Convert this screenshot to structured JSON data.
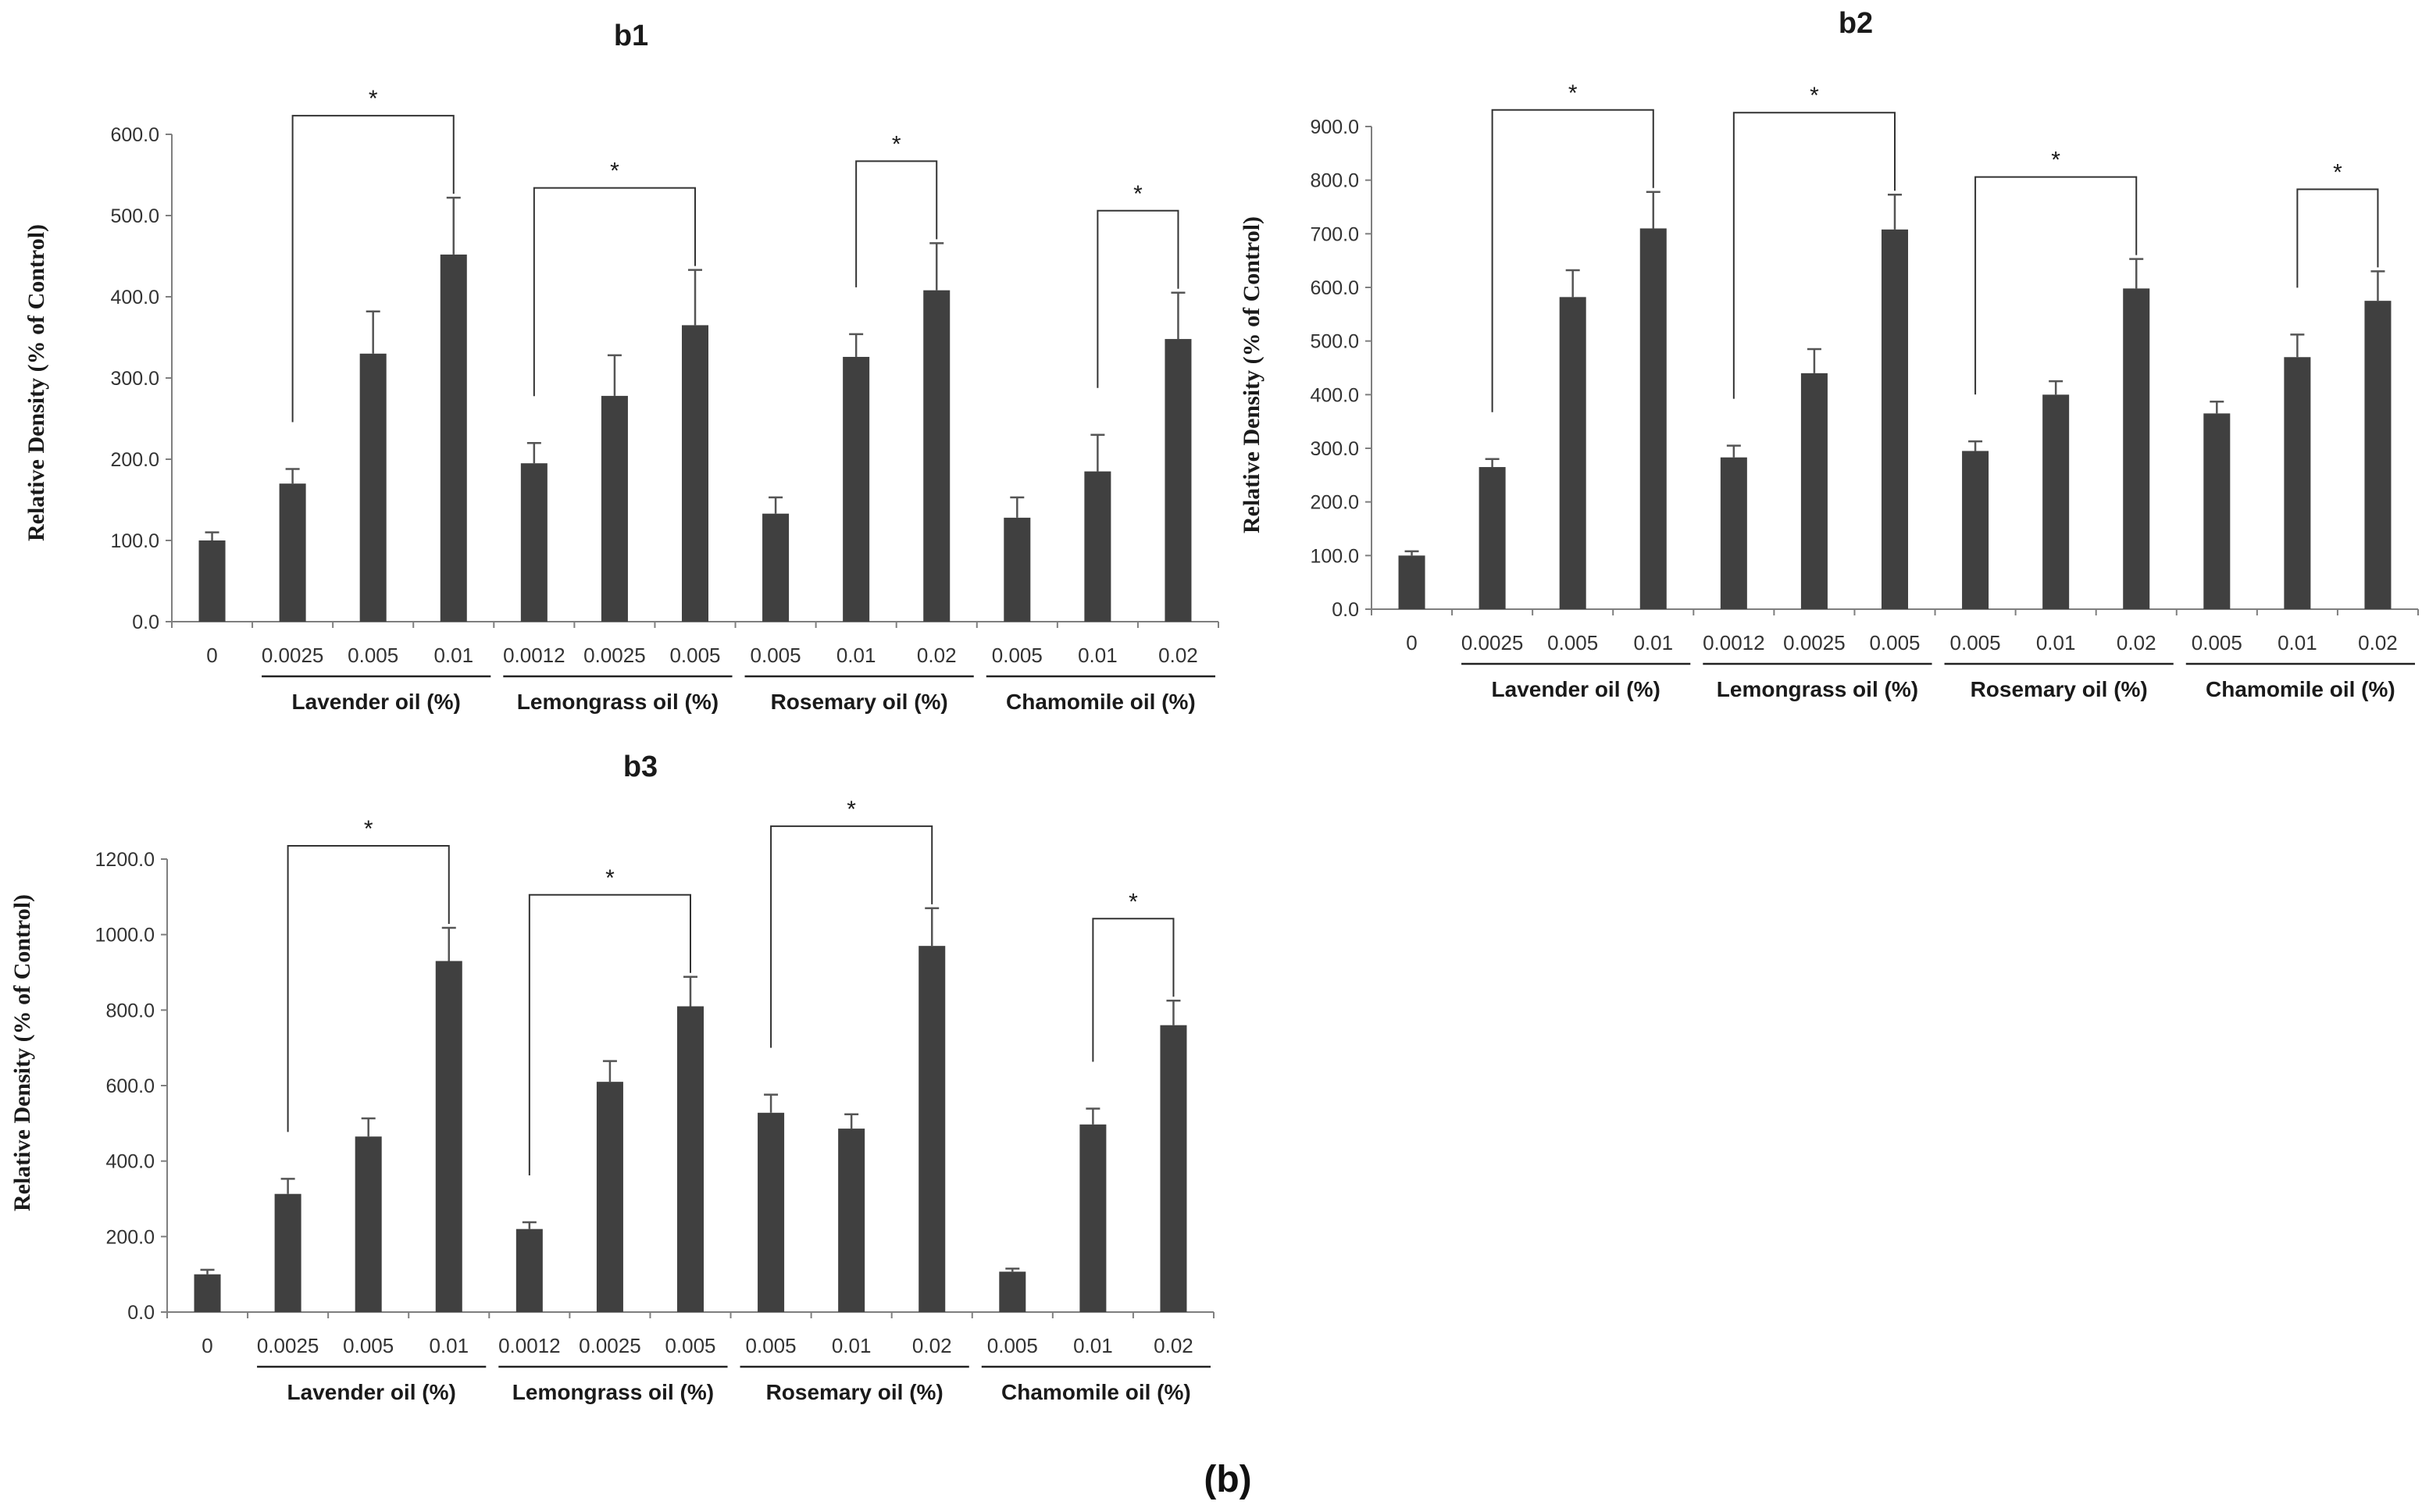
{
  "figure_label": "(b)",
  "chart_data": [
    {
      "id": "b1",
      "type": "bar",
      "title": "b1",
      "ylabel": "Relative Density (% of Control)",
      "xlabel": "",
      "ylim": [
        0,
        600
      ],
      "yticks": [
        "0.0",
        "100.0",
        "200.0",
        "300.0",
        "400.0",
        "500.0",
        "600.0"
      ],
      "categories": [
        "0",
        "0.0025",
        "0.005",
        "0.01",
        "0.0012",
        "0.0025",
        "0.005",
        "0.005",
        "0.01",
        "0.02",
        "0.005",
        "0.01",
        "0.02"
      ],
      "values": [
        100,
        170,
        330,
        452,
        195,
        278,
        365,
        133,
        326,
        408,
        128,
        185,
        348
      ],
      "errors": [
        10,
        18,
        52,
        70,
        25,
        50,
        68,
        20,
        28,
        58,
        25,
        45,
        57
      ],
      "groups": [
        {
          "label": "Lavender oil (%)",
          "from": 1,
          "to": 3
        },
        {
          "label": "Lemongrass oil (%)",
          "from": 4,
          "to": 6
        },
        {
          "label": "Rosemary oil (%)",
          "from": 7,
          "to": 9
        },
        {
          "label": "Chamomile oil (%)",
          "from": 10,
          "to": 12
        }
      ],
      "significance": [
        {
          "from": 1,
          "to": 3,
          "label": "*"
        },
        {
          "from": 4,
          "to": 6,
          "label": "*"
        },
        {
          "from": 8,
          "to": 9,
          "label": "*"
        },
        {
          "from": 11,
          "to": 12,
          "label": "*"
        }
      ]
    },
    {
      "id": "b2",
      "type": "bar",
      "title": "b2",
      "ylabel": "Relative Density (% of Control)",
      "xlabel": "",
      "ylim": [
        0,
        900
      ],
      "yticks": [
        "0.0",
        "100.0",
        "200.0",
        "300.0",
        "400.0",
        "500.0",
        "600.0",
        "700.0",
        "800.0",
        "900.0"
      ],
      "categories": [
        "0",
        "0.0025",
        "0.005",
        "0.01",
        "0.0012",
        "0.0025",
        "0.005",
        "0.005",
        "0.01",
        "0.02",
        "0.005",
        "0.01",
        "0.02"
      ],
      "values": [
        100,
        265,
        582,
        710,
        283,
        440,
        708,
        295,
        400,
        598,
        365,
        470,
        575
      ],
      "errors": [
        8,
        15,
        50,
        68,
        22,
        45,
        65,
        18,
        25,
        55,
        22,
        42,
        55
      ],
      "groups": [
        {
          "label": "Lavender oil (%)",
          "from": 1,
          "to": 3
        },
        {
          "label": "Lemongrass oil (%)",
          "from": 4,
          "to": 6
        },
        {
          "label": "Rosemary oil (%)",
          "from": 7,
          "to": 9
        },
        {
          "label": "Chamomile oil (%)",
          "from": 10,
          "to": 12
        }
      ],
      "significance": [
        {
          "from": 1,
          "to": 3,
          "label": "*"
        },
        {
          "from": 4,
          "to": 6,
          "label": "*"
        },
        {
          "from": 7,
          "to": 9,
          "label": "*"
        },
        {
          "from": 11,
          "to": 12,
          "label": "*"
        }
      ]
    },
    {
      "id": "b3",
      "type": "bar",
      "title": "b3",
      "ylabel": "Relative Density (% of Control)",
      "xlabel": "",
      "ylim": [
        0,
        1200
      ],
      "yticks": [
        "0.0",
        "200.0",
        "400.0",
        "600.0",
        "800.0",
        "1000.0",
        "1200.0"
      ],
      "categories": [
        "0",
        "0.0025",
        "0.005",
        "0.01",
        "0.0012",
        "0.0025",
        "0.005",
        "0.005",
        "0.01",
        "0.02",
        "0.005",
        "0.01",
        "0.02"
      ],
      "values": [
        100,
        313,
        465,
        930,
        220,
        610,
        810,
        528,
        486,
        970,
        107,
        497,
        760
      ],
      "errors": [
        12,
        40,
        48,
        88,
        18,
        55,
        78,
        48,
        38,
        100,
        8,
        42,
        65
      ],
      "groups": [
        {
          "label": "Lavender oil (%)",
          "from": 1,
          "to": 3
        },
        {
          "label": "Lemongrass oil (%)",
          "from": 4,
          "to": 6
        },
        {
          "label": "Rosemary oil (%)",
          "from": 7,
          "to": 9
        },
        {
          "label": "Chamomile oil (%)",
          "from": 10,
          "to": 12
        }
      ],
      "significance": [
        {
          "from": 1,
          "to": 3,
          "label": "*"
        },
        {
          "from": 4,
          "to": 6,
          "label": "*"
        },
        {
          "from": 7,
          "to": 9,
          "label": "*"
        },
        {
          "from": 11,
          "to": 12,
          "label": "*"
        }
      ]
    }
  ],
  "colors": {
    "bar": "#404040",
    "axis": "#7f7f7f",
    "bracket": "#333333",
    "text": "#1a1a1a"
  }
}
